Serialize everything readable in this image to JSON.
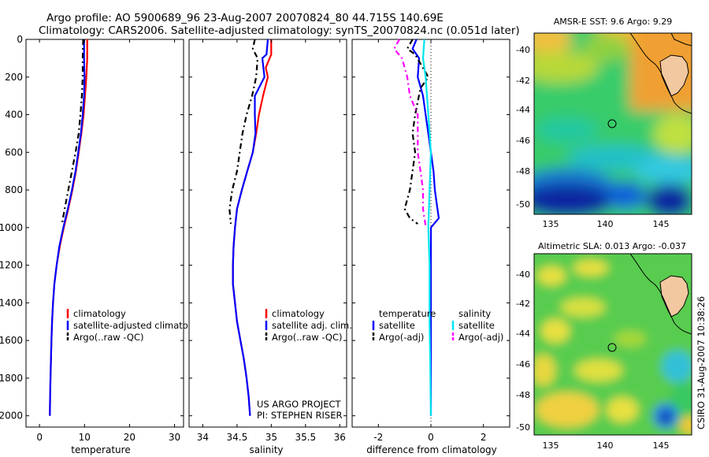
{
  "header": {
    "title_line1": "Argo profile: AO 5900689_96 23-Aug-2007 20070824_80 44.715S 140.69E",
    "title_line2": "Climatology: CARS2006. Satellite-adjusted climatology: synTS_20070824.nc (0.051d later)"
  },
  "stamp": "CSIRO 31-Aug-2007 10:38:26",
  "colors": {
    "red": "#ff0000",
    "blue": "#0000ff",
    "black": "#000000",
    "cyan": "#00e5ee",
    "magenta": "#ff00ff"
  },
  "chart_data": [
    {
      "id": "temperature",
      "type": "line",
      "xlabel": "temperature",
      "ylabel": "",
      "xlim": [
        -3,
        32
      ],
      "ylim": [
        2060,
        0
      ],
      "xticks": [
        0,
        10,
        20,
        30
      ],
      "yticks": [
        0,
        200,
        400,
        600,
        800,
        1000,
        1200,
        1400,
        1600,
        1800,
        2000
      ],
      "legend": {
        "position": "bottom-right",
        "entries": [
          "climatology",
          "satellite-adjusted climatology",
          "Argo(..raw -QC)"
        ]
      },
      "series": [
        {
          "name": "climatology",
          "color": "red",
          "dash": "",
          "points": [
            [
              10.6,
              0
            ],
            [
              10.6,
              100
            ],
            [
              10.4,
              200
            ],
            [
              10.1,
              300
            ],
            [
              9.8,
              400
            ],
            [
              9.3,
              500
            ],
            [
              8.7,
              600
            ],
            [
              8.1,
              700
            ],
            [
              7.3,
              800
            ],
            [
              6.4,
              900
            ],
            [
              5.4,
              1000
            ],
            [
              4.5,
              1100
            ],
            [
              3.8,
              1200
            ],
            [
              3.3,
              1300
            ],
            [
              3.0,
              1400
            ],
            [
              2.8,
              1500
            ],
            [
              2.65,
              1600
            ],
            [
              2.55,
              1700
            ],
            [
              2.45,
              1800
            ],
            [
              2.35,
              1900
            ],
            [
              2.3,
              2000
            ]
          ]
        },
        {
          "name": "satellite-adjusted climatology",
          "color": "blue",
          "dash": "",
          "points": [
            [
              9.9,
              0
            ],
            [
              9.9,
              100
            ],
            [
              10.0,
              200
            ],
            [
              9.9,
              300
            ],
            [
              9.6,
              400
            ],
            [
              9.2,
              500
            ],
            [
              8.6,
              600
            ],
            [
              8.0,
              700
            ],
            [
              7.2,
              800
            ],
            [
              6.3,
              900
            ],
            [
              5.3,
              1000
            ],
            [
              4.4,
              1100
            ],
            [
              3.8,
              1200
            ],
            [
              3.3,
              1300
            ],
            [
              3.0,
              1400
            ],
            [
              2.8,
              1500
            ],
            [
              2.65,
              1600
            ],
            [
              2.55,
              1700
            ],
            [
              2.45,
              1800
            ],
            [
              2.35,
              1900
            ],
            [
              2.3,
              2000
            ]
          ]
        },
        {
          "name": "Argo(..raw -QC)",
          "color": "black",
          "dash": "7,4,2,4",
          "points": [
            [
              9.7,
              0
            ],
            [
              9.6,
              100
            ],
            [
              9.6,
              200
            ],
            [
              9.4,
              300
            ],
            [
              9.1,
              400
            ],
            [
              8.7,
              500
            ],
            [
              8.0,
              600
            ],
            [
              7.2,
              700
            ],
            [
              6.4,
              800
            ],
            [
              5.6,
              900
            ],
            [
              5.0,
              980
            ]
          ]
        }
      ],
      "annotations": []
    },
    {
      "id": "salinity",
      "type": "line",
      "xlabel": "salinity",
      "ylabel": "",
      "xlim": [
        33.8,
        36.1
      ],
      "ylim": [
        2060,
        0
      ],
      "xticks": [
        34,
        34.5,
        35,
        35.5,
        36
      ],
      "yticks": [
        0,
        200,
        400,
        600,
        800,
        1000,
        1200,
        1400,
        1600,
        1800,
        2000
      ],
      "legend": {
        "position": "bottom-right",
        "entries": [
          "climatology",
          "satellite adj. clim.",
          "Argo(..raw -QC)"
        ]
      },
      "series": [
        {
          "name": "climatology",
          "color": "red",
          "dash": "",
          "points": [
            [
              35.0,
              0
            ],
            [
              35.0,
              80
            ],
            [
              34.92,
              150
            ],
            [
              34.95,
              200
            ],
            [
              34.88,
              300
            ],
            [
              34.82,
              400
            ],
            [
              34.78,
              500
            ],
            [
              34.73,
              600
            ],
            [
              34.65,
              700
            ],
            [
              34.57,
              800
            ],
            [
              34.5,
              900
            ],
            [
              34.47,
              1000
            ],
            [
              34.45,
              1100
            ],
            [
              34.44,
              1200
            ],
            [
              34.44,
              1300
            ],
            [
              34.47,
              1400
            ],
            [
              34.5,
              1500
            ],
            [
              34.55,
              1600
            ],
            [
              34.6,
              1700
            ],
            [
              34.64,
              1800
            ],
            [
              34.67,
              1900
            ],
            [
              34.69,
              2000
            ]
          ]
        },
        {
          "name": "satellite adj. clim.",
          "color": "blue",
          "dash": "",
          "points": [
            [
              34.95,
              0
            ],
            [
              34.93,
              80
            ],
            [
              34.87,
              100
            ],
            [
              34.9,
              200
            ],
            [
              34.76,
              300
            ],
            [
              34.76,
              400
            ],
            [
              34.77,
              500
            ],
            [
              34.73,
              600
            ],
            [
              34.65,
              700
            ],
            [
              34.57,
              800
            ],
            [
              34.5,
              900
            ],
            [
              34.47,
              1000
            ],
            [
              34.45,
              1100
            ],
            [
              34.44,
              1200
            ],
            [
              34.44,
              1300
            ],
            [
              34.47,
              1400
            ],
            [
              34.5,
              1500
            ],
            [
              34.55,
              1600
            ],
            [
              34.6,
              1700
            ],
            [
              34.64,
              1800
            ],
            [
              34.67,
              1900
            ],
            [
              34.69,
              2000
            ]
          ]
        },
        {
          "name": "Argo(..raw -QC)",
          "color": "black",
          "dash": "7,4,2,4",
          "points": [
            [
              34.76,
              0
            ],
            [
              34.73,
              50
            ],
            [
              34.8,
              100
            ],
            [
              34.78,
              200
            ],
            [
              34.72,
              300
            ],
            [
              34.64,
              400
            ],
            [
              34.58,
              500
            ],
            [
              34.54,
              600
            ],
            [
              34.5,
              700
            ],
            [
              34.43,
              800
            ],
            [
              34.39,
              900
            ],
            [
              34.41,
              980
            ]
          ]
        }
      ],
      "annotations": [
        "US ARGO PROJECT",
        "PI: STEPHEN RISER"
      ]
    },
    {
      "id": "difference",
      "type": "line",
      "xlabel": "difference from climatology",
      "ylabel": "",
      "xlim": [
        -3.0,
        3.0
      ],
      "ylim": [
        2060,
        0
      ],
      "xticks": [
        -2,
        0,
        2
      ],
      "yticks": [
        0,
        200,
        400,
        600,
        800,
        1000,
        1200,
        1400,
        1600,
        1800,
        2000
      ],
      "legend": {
        "position": "bottom",
        "groups": [
          {
            "title": "temperature",
            "entries": [
              "satellite",
              "Argo(-adj)"
            ]
          },
          {
            "title": "salinity",
            "entries": [
              "satellite",
              "Argo(-adj)"
            ]
          }
        ]
      },
      "series": [
        {
          "name": "temperature satellite",
          "color": "blue",
          "dash": "",
          "points": [
            [
              -0.55,
              0
            ],
            [
              -0.7,
              50
            ],
            [
              -0.45,
              100
            ],
            [
              -0.5,
              200
            ],
            [
              -0.3,
              300
            ],
            [
              -0.2,
              400
            ],
            [
              -0.1,
              500
            ],
            [
              0.0,
              600
            ],
            [
              0.1,
              700
            ],
            [
              0.15,
              800
            ],
            [
              0.25,
              900
            ],
            [
              0.3,
              950
            ],
            [
              0.0,
              1000
            ],
            [
              0.0,
              2000
            ]
          ]
        },
        {
          "name": "temperature Argo(-adj)",
          "color": "black",
          "dash": "7,4,2,4",
          "points": [
            [
              -0.7,
              0
            ],
            [
              -0.9,
              50
            ],
            [
              -0.6,
              80
            ],
            [
              -0.1,
              200
            ],
            [
              -0.4,
              260
            ],
            [
              -0.6,
              400
            ],
            [
              -0.7,
              500
            ],
            [
              -0.6,
              600
            ],
            [
              -0.7,
              700
            ],
            [
              -0.8,
              800
            ],
            [
              -1.0,
              900
            ],
            [
              -0.8,
              950
            ],
            [
              -0.5,
              980
            ]
          ]
        },
        {
          "name": "salinity satellite",
          "color": "cyan",
          "dash": "",
          "points": [
            [
              -0.25,
              0
            ],
            [
              -0.3,
              100
            ],
            [
              -0.2,
              200
            ],
            [
              -0.1,
              400
            ],
            [
              0.0,
              600
            ],
            [
              -0.05,
              800
            ],
            [
              -0.1,
              1000
            ],
            [
              -0.05,
              1200
            ],
            [
              -0.05,
              1500
            ],
            [
              0.0,
              2000
            ]
          ]
        },
        {
          "name": "salinity Argo(-adj)",
          "color": "magenta",
          "dash": "7,4,2,4",
          "points": [
            [
              -1.2,
              0
            ],
            [
              -1.4,
              50
            ],
            [
              -1.1,
              100
            ],
            [
              -0.9,
              200
            ],
            [
              -0.8,
              300
            ],
            [
              -0.5,
              400
            ],
            [
              -0.5,
              500
            ],
            [
              -0.5,
              600
            ],
            [
              -0.4,
              700
            ],
            [
              -0.3,
              800
            ],
            [
              -0.3,
              900
            ],
            [
              -0.25,
              950
            ],
            [
              -0.2,
              990
            ]
          ]
        }
      ],
      "annotations": []
    }
  ],
  "maps": [
    {
      "id": "sst-map",
      "title": "AMSR-E SST: 9.6 Argo: 9.29",
      "xticks": [
        "135",
        "140",
        "145"
      ],
      "yticks": [
        "-40",
        "-42",
        "-44",
        "-46",
        "-48",
        "-50"
      ],
      "lon_range": [
        133.5,
        148
      ],
      "lat_range": [
        -51,
        -38.8
      ],
      "argo_position": [
        140.69,
        -44.715
      ]
    },
    {
      "id": "sla-map",
      "title": "Altimetric SLA: 0.013 Argo: -0.037",
      "xticks": [
        "135",
        "140",
        "145"
      ],
      "yticks": [
        "-40",
        "-42",
        "-44",
        "-46",
        "-48",
        "-50"
      ],
      "lon_range": [
        133.5,
        148
      ],
      "lat_range": [
        -51,
        -38.8
      ],
      "argo_position": [
        140.69,
        -44.715
      ]
    }
  ]
}
